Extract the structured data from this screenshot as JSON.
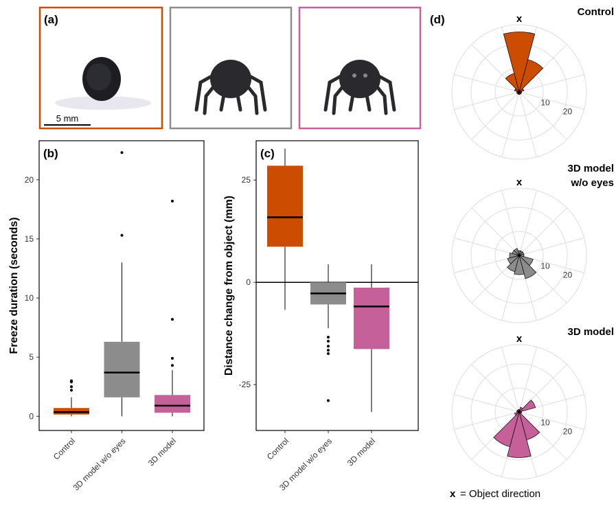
{
  "photos": {
    "label": "(a)",
    "scale_bar": "5 mm"
  },
  "polar_panel": {
    "label": "(d)",
    "legend_symbol": "x",
    "legend_text": "= Object direction"
  },
  "chart_data": [
    {
      "type": "box",
      "label": "(b)",
      "ylabel": "Freeze duration (seconds)",
      "categories": [
        "Control",
        "3D model w/o eyes",
        "3D model"
      ],
      "boxes": [
        {
          "color": "#cc4c02",
          "min": 0,
          "q1": 0.15,
          "median": 0.35,
          "q3": 0.7,
          "max": 1.6,
          "outliers": [
            2.2,
            2.5,
            2.9,
            3.0
          ]
        },
        {
          "color": "#8c8c8c",
          "min": 0,
          "q1": 1.6,
          "median": 3.7,
          "q3": 6.3,
          "max": 13,
          "outliers": [
            15.3,
            22.3
          ]
        },
        {
          "color": "#c5609a",
          "min": 0,
          "q1": 0.3,
          "median": 0.9,
          "q3": 1.8,
          "max": 3.9,
          "outliers": [
            4.3,
            4.9,
            8.2,
            18.2
          ]
        }
      ],
      "ylim": [
        -1.2,
        23.3
      ],
      "yticks": [
        0,
        5,
        10,
        15,
        20
      ]
    },
    {
      "type": "box",
      "label": "(c)",
      "ylabel": "Distance change from object (mm)",
      "categories": [
        "Control",
        "3D model w/o eyes",
        "3D model"
      ],
      "boxes": [
        {
          "color": "#cc4c02",
          "min": -6.7,
          "q1": 8.7,
          "median": 15.9,
          "q3": 28.5,
          "max": 32.7,
          "outliers": []
        },
        {
          "color": "#8c8c8c",
          "min": -11.2,
          "q1": -5.4,
          "median": -2.7,
          "q3": 0,
          "max": 4.4,
          "outliers": [
            -13.4,
            -14.4,
            -15.6,
            -16.6,
            -17.4,
            -28.9
          ]
        },
        {
          "color": "#c5609a",
          "min": -31.7,
          "q1": -16.3,
          "median": -5.9,
          "q3": -1.3,
          "max": 4.4,
          "outliers": []
        }
      ],
      "ylim": [
        -36.2,
        34.6
      ],
      "yticks": [
        -25,
        0,
        25
      ],
      "hline": 0
    },
    {
      "type": "rose",
      "title": [
        "Control"
      ],
      "direction_marker": "x",
      "color": "#cc4c02",
      "theta": [
        0,
        30,
        60,
        90,
        120,
        150,
        180,
        210,
        240,
        270,
        300,
        330
      ],
      "values": [
        25,
        14,
        2,
        1,
        1,
        1,
        1,
        1,
        1,
        1,
        2,
        8
      ],
      "rlim": [
        0,
        28
      ],
      "rticks": [
        10,
        20
      ]
    },
    {
      "type": "rose",
      "title": [
        "3D model",
        "w/o eyes"
      ],
      "direction_marker": "x",
      "color": "#8c8c8c",
      "theta": [
        0,
        30,
        60,
        90,
        120,
        150,
        180,
        210,
        240,
        270,
        300,
        330
      ],
      "values": [
        2,
        2,
        2,
        2,
        6,
        10,
        8,
        7,
        5,
        4,
        3,
        3
      ],
      "rlim": [
        0,
        28
      ],
      "rticks": [
        10,
        20
      ]
    },
    {
      "type": "rose",
      "title": [
        "3D model"
      ],
      "direction_marker": "x",
      "color": "#c5609a",
      "theta": [
        0,
        30,
        60,
        90,
        120,
        150,
        180,
        210,
        240,
        270,
        300,
        330
      ],
      "values": [
        1,
        2,
        7,
        1,
        1,
        12,
        19,
        15,
        2,
        1,
        1,
        1
      ],
      "rlim": [
        0,
        28
      ],
      "rticks": [
        10,
        20
      ]
    }
  ]
}
